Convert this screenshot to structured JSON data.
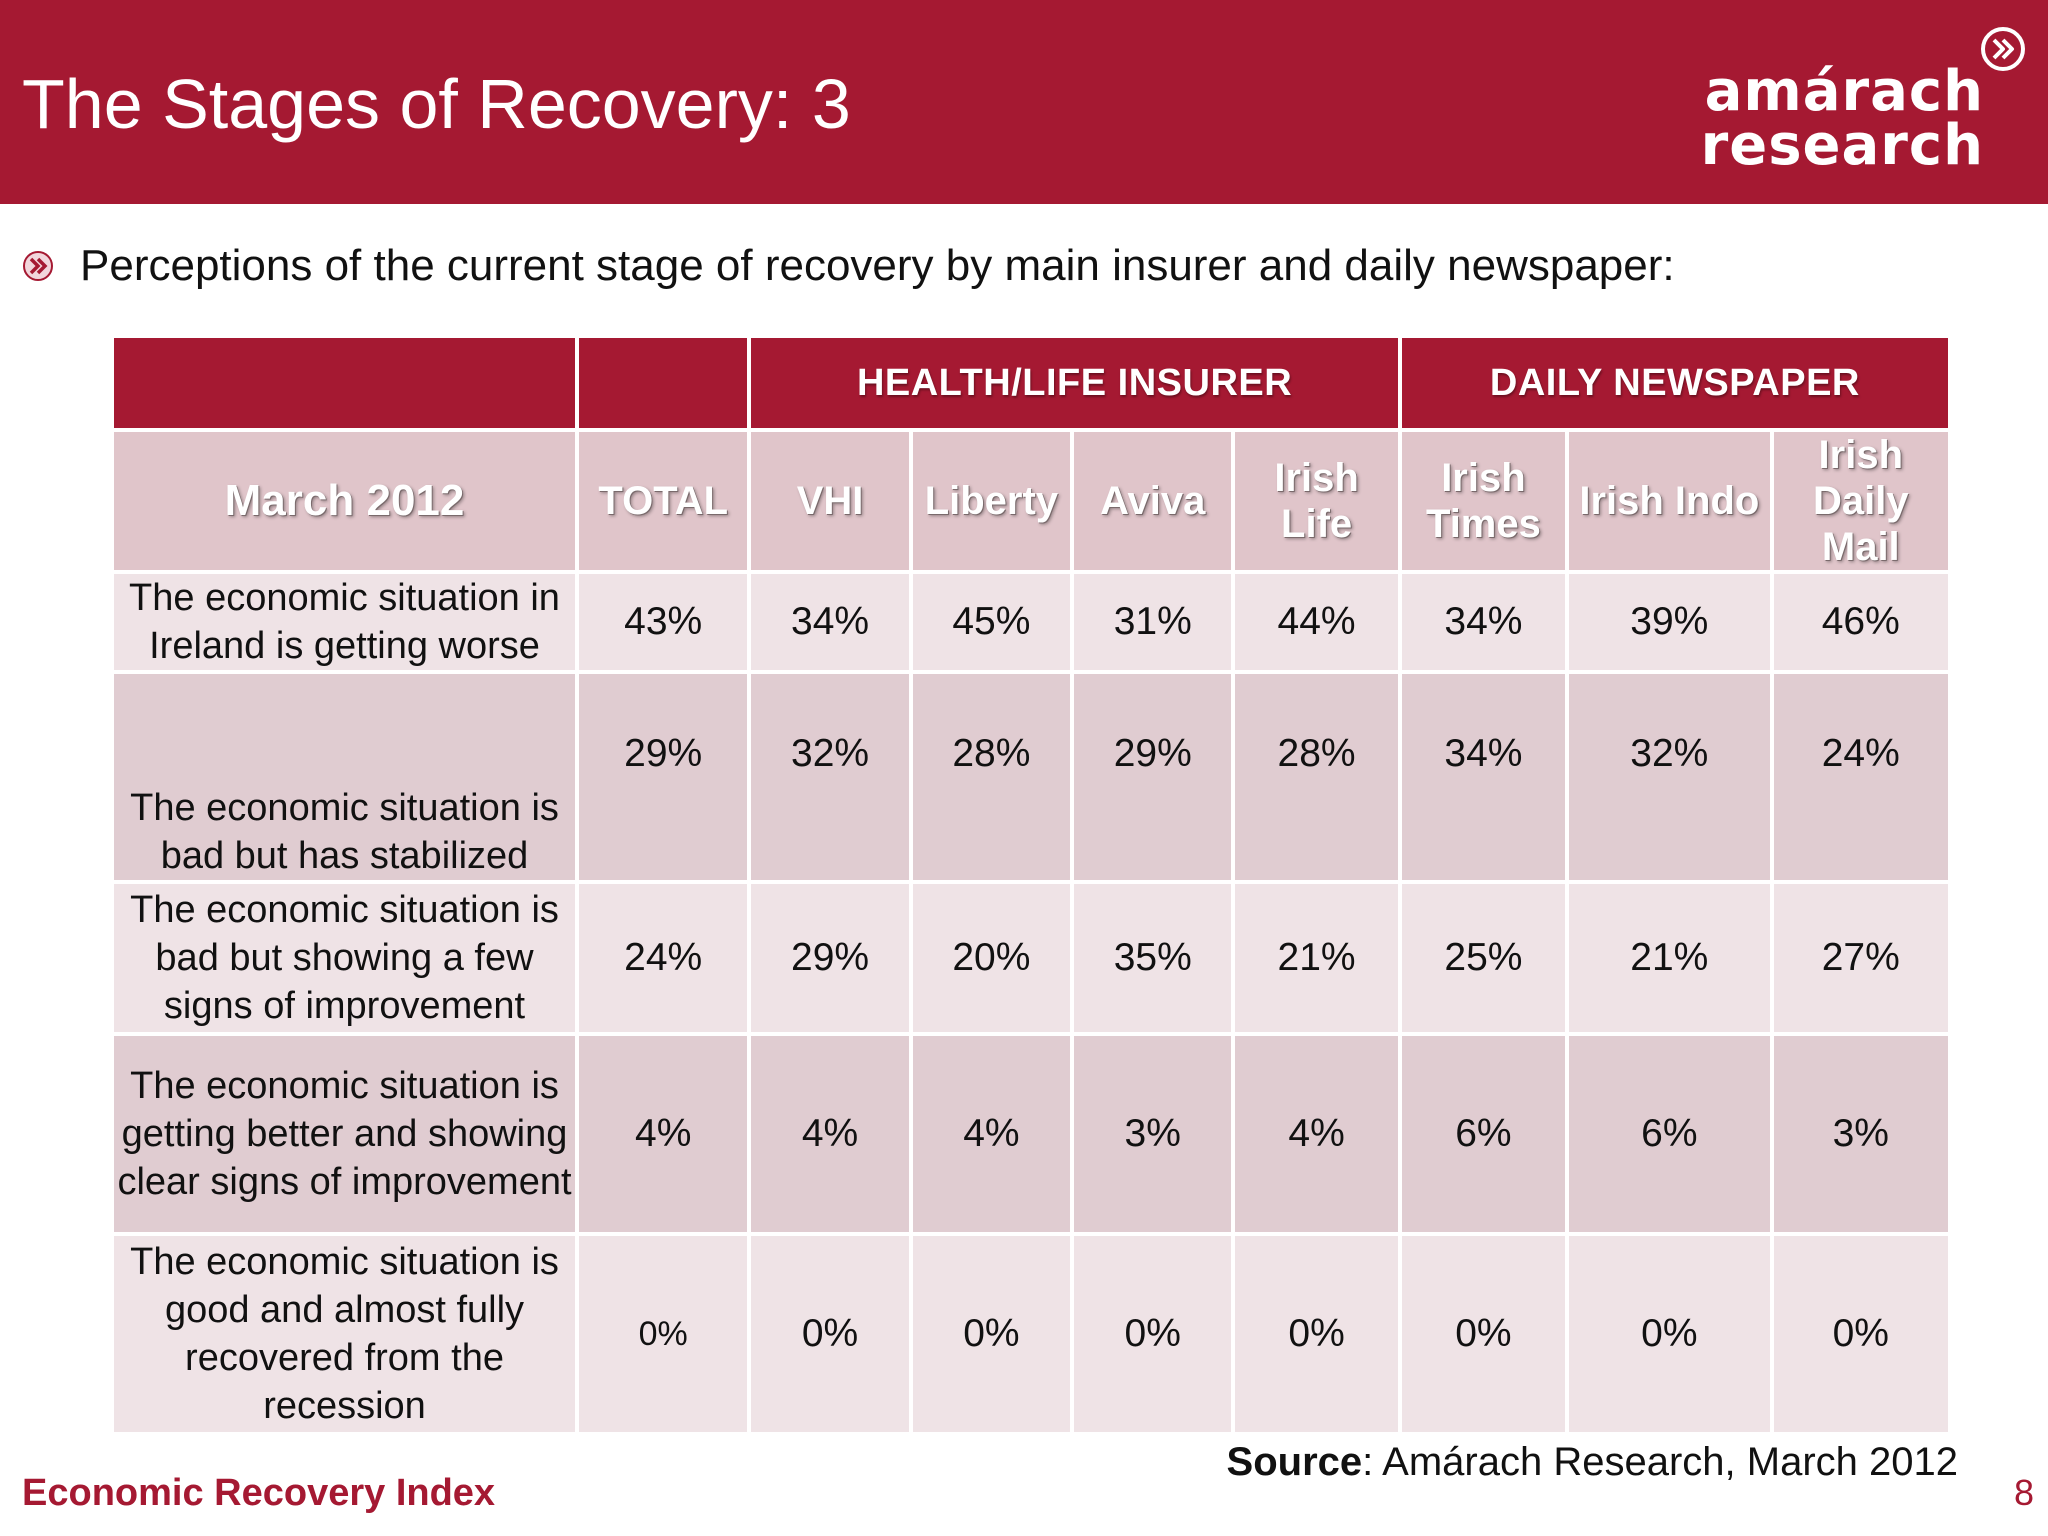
{
  "slide": {
    "title": "The Stages of Recovery: 3",
    "subtitle": "Perceptions of the current stage of recovery by main insurer and daily newspaper:",
    "brand_color": "#a51932"
  },
  "logo": {
    "line1": "amárach",
    "line2": "research",
    "icon": "chevron-circle-icon"
  },
  "table": {
    "groups": {
      "insurer": "HEALTH/LIFE INSURER",
      "newspaper": "DAILY NEWSPAPER"
    },
    "corner_label": "March 2012",
    "columns": {
      "total": "TOTAL",
      "vhi": "VHI",
      "liberty": "Liberty",
      "aviva": "Aviva",
      "irish_life": "Irish Life",
      "irish_times": "Irish Times",
      "irish_indo": "Irish Indo",
      "irish_daily_mail": "Irish Daily Mail"
    },
    "rows": [
      {
        "label": "The economic situation in Ireland is getting worse",
        "values": [
          "43%",
          "34%",
          "45%",
          "31%",
          "44%",
          "34%",
          "39%",
          "46%"
        ]
      },
      {
        "label": "The economic situation is bad but has stabilized",
        "values": [
          "29%",
          "32%",
          "28%",
          "29%",
          "28%",
          "34%",
          "32%",
          "24%"
        ]
      },
      {
        "label": "The economic situation is bad but showing a few signs of improvement",
        "values": [
          "24%",
          "29%",
          "20%",
          "35%",
          "21%",
          "25%",
          "21%",
          "27%"
        ]
      },
      {
        "label": "The economic situation is getting better and showing clear signs of improvement",
        "values": [
          "4%",
          "4%",
          "4%",
          "3%",
          "4%",
          "6%",
          "6%",
          "3%"
        ]
      },
      {
        "label": "The economic situation is good and almost fully recovered from the recession",
        "values": [
          "0%",
          "0%",
          "0%",
          "0%",
          "0%",
          "0%",
          "0%",
          "0%"
        ]
      }
    ]
  },
  "footer": {
    "source_bold": "Source",
    "source_rest": ": Amárach Research, March 2012",
    "index_title": "Economic Recovery Index",
    "page_number": "8"
  }
}
